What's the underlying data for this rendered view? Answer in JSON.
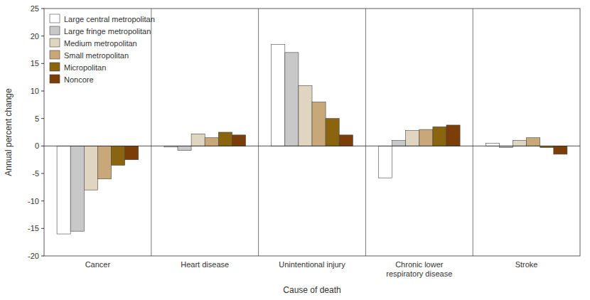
{
  "chart_data": {
    "type": "bar",
    "categories": [
      "Cancer",
      "Heart disease",
      "Unintentional injury",
      "Chronic lower\nrespiratory disease",
      "Stroke"
    ],
    "series": [
      {
        "name": "Large central metropolitan",
        "color": "#ffffff",
        "values": [
          -16.0,
          -0.2,
          18.5,
          -5.8,
          0.5
        ]
      },
      {
        "name": "Large fringe metropolitan",
        "color": "#c8c8c8",
        "values": [
          -15.5,
          -0.8,
          17.0,
          1.0,
          -0.3
        ]
      },
      {
        "name": "Medium metropolitan",
        "color": "#dfd5c0",
        "values": [
          -8.0,
          2.2,
          11.0,
          2.8,
          1.0
        ]
      },
      {
        "name": "Small metropolitan",
        "color": "#c8a878",
        "values": [
          -6.0,
          1.5,
          8.0,
          3.0,
          1.5
        ]
      },
      {
        "name": "Micropolitan",
        "color": "#8b6410",
        "values": [
          -3.5,
          2.5,
          5.0,
          3.5,
          -0.3
        ]
      },
      {
        "name": "Noncore",
        "color": "#7b3e08",
        "values": [
          -2.5,
          2.0,
          2.0,
          3.8,
          -1.5
        ]
      }
    ],
    "xlabel": "Cause of death",
    "ylabel": "Annual percent change",
    "ylim": [
      -20,
      25
    ],
    "yticks": [
      -20,
      -15,
      -10,
      -5,
      0,
      5,
      10,
      15,
      20,
      25
    ],
    "legend": "upper left",
    "grid": false
  }
}
